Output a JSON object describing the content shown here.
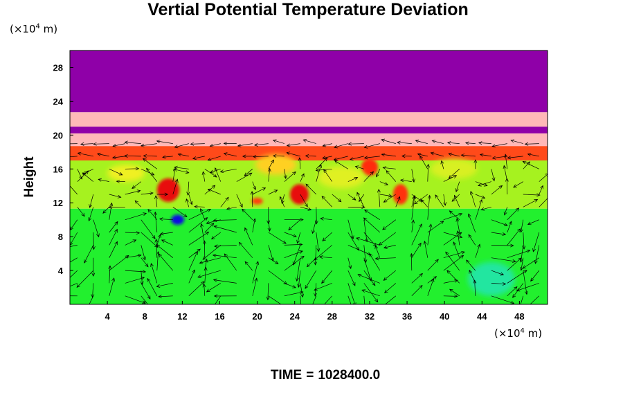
{
  "chart_data": {
    "type": "heatmap",
    "title": "Vertial Potential Temperature Deviation",
    "ylabel": "Height",
    "xlabel": "",
    "x_unit": {
      "prefix": "(×10",
      "exp": "4",
      "suffix": " m)"
    },
    "y_unit": {
      "prefix": "(×10",
      "exp": "4",
      "suffix": " m)"
    },
    "xlim": [
      0,
      51
    ],
    "ylim": [
      0,
      30
    ],
    "x_ticks": [
      4,
      8,
      12,
      16,
      20,
      24,
      28,
      32,
      36,
      40,
      44,
      48
    ],
    "y_ticks": [
      4,
      8,
      12,
      16,
      20,
      24,
      28
    ],
    "overlay": "wind-vectors",
    "bands": [
      {
        "y0": 22.7,
        "y1": 30,
        "color": "#8f00a8"
      },
      {
        "y0": 21.0,
        "y1": 22.7,
        "color": "#ffb8b8"
      },
      {
        "y0": 20.2,
        "y1": 21.0,
        "color": "#8f00a8"
      },
      {
        "y0": 18.7,
        "y1": 20.2,
        "color": "#ffb8b8"
      },
      {
        "y0": 17.0,
        "y1": 18.7,
        "color": "#ff4a1a"
      },
      {
        "y0": 11.3,
        "y1": 17.0,
        "color": "#a6f21f"
      },
      {
        "y0": 0,
        "y1": 11.3,
        "color": "#22f02e"
      }
    ],
    "features": [
      {
        "x": 10.5,
        "y": 13.5,
        "rx": 1.2,
        "ry": 1.4,
        "color": "#e81010"
      },
      {
        "x": 24.5,
        "y": 13.0,
        "rx": 1.0,
        "ry": 1.2,
        "color": "#e81010"
      },
      {
        "x": 32.0,
        "y": 16.2,
        "rx": 0.9,
        "ry": 1.0,
        "color": "#ff2a10"
      },
      {
        "x": 35.3,
        "y": 13.0,
        "rx": 0.8,
        "ry": 1.2,
        "color": "#ff3010"
      },
      {
        "x": 11.5,
        "y": 10.0,
        "rx": 0.7,
        "ry": 0.6,
        "color": "#1010e0"
      },
      {
        "x": 45.0,
        "y": 3.0,
        "rx": 2.5,
        "ry": 2.0,
        "color": "#20e6a0"
      },
      {
        "x": 20.0,
        "y": 12.2,
        "rx": 0.6,
        "ry": 0.4,
        "color": "#ff4010"
      },
      {
        "x": 6.0,
        "y": 15.5,
        "rx": 2.0,
        "ry": 1.0,
        "color": "#f0f020"
      },
      {
        "x": 22.0,
        "y": 16.5,
        "rx": 2.2,
        "ry": 1.2,
        "color": "#ffd020"
      },
      {
        "x": 29.0,
        "y": 15.0,
        "rx": 2.5,
        "ry": 1.3,
        "color": "#e0f020"
      },
      {
        "x": 41.0,
        "y": 16.0,
        "rx": 2.5,
        "ry": 1.2,
        "color": "#d8f020"
      }
    ],
    "colors": {
      "axes": "#000000",
      "vector": "#000000"
    }
  },
  "footer": {
    "time_label": "TIME",
    "equals": "=",
    "time_value": "1028400.0"
  }
}
